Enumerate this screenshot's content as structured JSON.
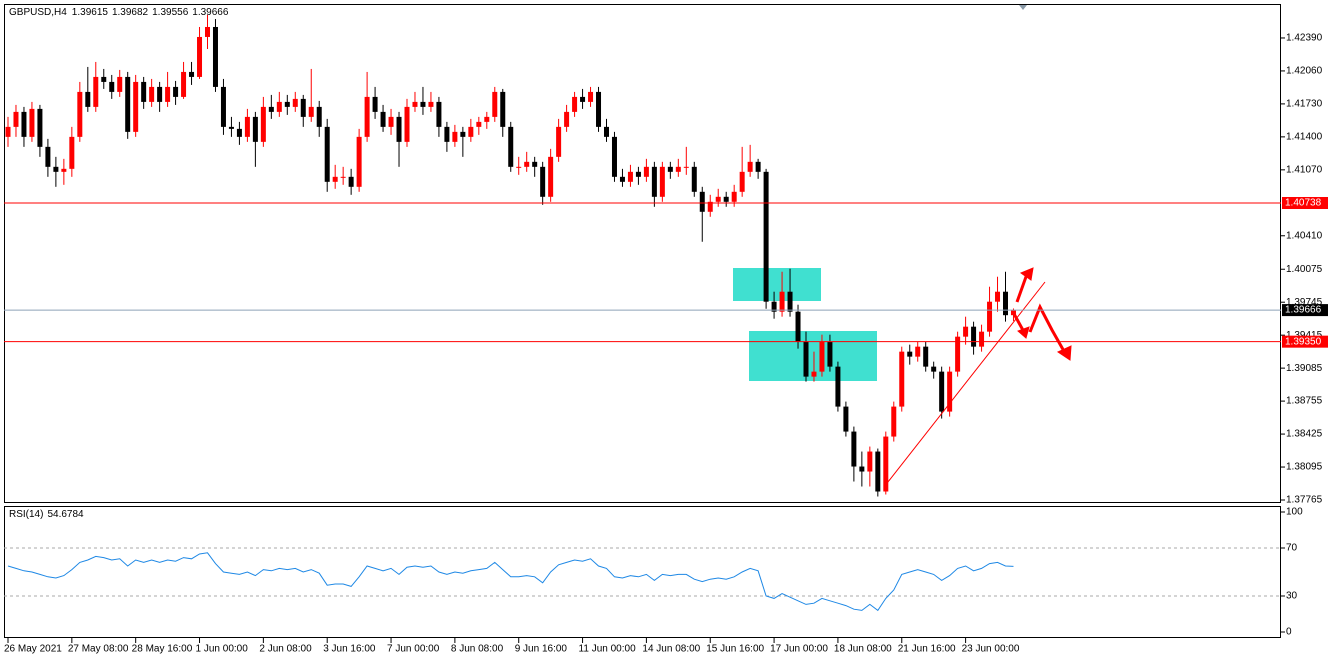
{
  "chart_data": [
    {
      "type": "candlestick",
      "title": "GBPUSD,H4",
      "categories": [
        "26 May 2021",
        null,
        null,
        null,
        null,
        null,
        null,
        null,
        "27 May 08:00",
        null,
        null,
        null,
        null,
        null,
        null,
        null,
        "28 May 16:00",
        null,
        null,
        null,
        null,
        null,
        null,
        null,
        "1 Jun 00:00",
        null,
        null,
        null,
        null,
        null,
        null,
        null,
        "2 Jun 08:00",
        null,
        null,
        null,
        null,
        null,
        null,
        null,
        "3 Jun 16:00",
        null,
        null,
        null,
        null,
        null,
        null,
        null,
        "7 Jun 00:00",
        null,
        null,
        null,
        null,
        null,
        null,
        null,
        "8 Jun 08:00",
        null,
        null,
        null,
        null,
        null,
        null,
        null,
        "9 Jun 16:00",
        null,
        null,
        null,
        null,
        null,
        null,
        null,
        "11 Jun 00:00",
        null,
        null,
        null,
        null,
        null,
        null,
        null,
        "14 Jun 08:00",
        null,
        null,
        null,
        null,
        null,
        null,
        null,
        "15 Jun 16:00",
        null,
        null,
        null,
        null,
        null,
        null,
        null,
        "17 Jun 00:00",
        null,
        null,
        null,
        null,
        null,
        null,
        null,
        "18 Jun 08:00",
        null,
        null,
        null,
        null,
        null,
        null,
        null,
        "21 Jun 16:00",
        null,
        null,
        null,
        null,
        null,
        null,
        null,
        "23 Jun 00:00",
        null,
        null,
        null,
        null,
        null,
        null
      ],
      "candles": [
        [
          1.414,
          1.416,
          1.413,
          1.415
        ],
        [
          1.415,
          1.4172,
          1.414,
          1.4165
        ],
        [
          1.4165,
          1.417,
          1.413,
          1.414
        ],
        [
          1.414,
          1.4175,
          1.4135,
          1.4168
        ],
        [
          1.4168,
          1.4172,
          1.412,
          1.413
        ],
        [
          1.413,
          1.4138,
          1.41,
          1.411
        ],
        [
          1.411,
          1.412,
          1.409,
          1.4105
        ],
        [
          1.4105,
          1.4118,
          1.4092,
          1.4108
        ],
        [
          1.4108,
          1.415,
          1.41,
          1.414
        ],
        [
          1.414,
          1.4195,
          1.4135,
          1.4185
        ],
        [
          1.4185,
          1.421,
          1.4165,
          1.417
        ],
        [
          1.417,
          1.4215,
          1.4165,
          1.42
        ],
        [
          1.42,
          1.4208,
          1.4188,
          1.4195
        ],
        [
          1.4195,
          1.4202,
          1.4178,
          1.4185
        ],
        [
          1.4185,
          1.4207,
          1.418,
          1.42
        ],
        [
          1.42,
          1.4205,
          1.4138,
          1.4145
        ],
        [
          1.4145,
          1.4202,
          1.414,
          1.4195
        ],
        [
          1.4195,
          1.42,
          1.4168,
          1.4175
        ],
        [
          1.4175,
          1.4198,
          1.417,
          1.419
        ],
        [
          1.419,
          1.4195,
          1.4165,
          1.4175
        ],
        [
          1.4175,
          1.4205,
          1.417,
          1.419
        ],
        [
          1.419,
          1.4196,
          1.4172,
          1.418
        ],
        [
          1.418,
          1.4215,
          1.4178,
          1.4205
        ],
        [
          1.4205,
          1.4215,
          1.4192,
          1.42
        ],
        [
          1.42,
          1.425,
          1.4198,
          1.424
        ],
        [
          1.424,
          1.4262,
          1.4228,
          1.425
        ],
        [
          1.425,
          1.4258,
          1.4185,
          1.419
        ],
        [
          1.419,
          1.4198,
          1.4142,
          1.415
        ],
        [
          1.415,
          1.416,
          1.414,
          1.4148
        ],
        [
          1.4148,
          1.4155,
          1.4132,
          1.414
        ],
        [
          1.414,
          1.4168,
          1.4135,
          1.416
        ],
        [
          1.416,
          1.4165,
          1.411,
          1.4135
        ],
        [
          1.4135,
          1.418,
          1.413,
          1.417
        ],
        [
          1.417,
          1.4182,
          1.4158,
          1.4165
        ],
        [
          1.4165,
          1.4185,
          1.416,
          1.4175
        ],
        [
          1.4175,
          1.4182,
          1.4162,
          1.417
        ],
        [
          1.417,
          1.4185,
          1.4165,
          1.4178
        ],
        [
          1.4178,
          1.4182,
          1.415,
          1.416
        ],
        [
          1.416,
          1.4208,
          1.4155,
          1.417
        ],
        [
          1.417,
          1.4176,
          1.414,
          1.415
        ],
        [
          1.415,
          1.4158,
          1.4085,
          1.4095
        ],
        [
          1.4095,
          1.4112,
          1.4088,
          1.41
        ],
        [
          1.41,
          1.411,
          1.4092,
          1.41
        ],
        [
          1.41,
          1.4108,
          1.4082,
          1.409
        ],
        [
          1.409,
          1.4148,
          1.4085,
          1.414
        ],
        [
          1.414,
          1.4205,
          1.4135,
          1.418
        ],
        [
          1.418,
          1.419,
          1.4158,
          1.4165
        ],
        [
          1.4165,
          1.4172,
          1.4145,
          1.415
        ],
        [
          1.415,
          1.4168,
          1.4142,
          1.416
        ],
        [
          1.416,
          1.4165,
          1.411,
          1.4135
        ],
        [
          1.4135,
          1.4178,
          1.413,
          1.417
        ],
        [
          1.417,
          1.4185,
          1.4165,
          1.4175
        ],
        [
          1.4175,
          1.419,
          1.4162,
          1.417
        ],
        [
          1.417,
          1.4185,
          1.4165,
          1.4175
        ],
        [
          1.4175,
          1.418,
          1.414,
          1.415
        ],
        [
          1.415,
          1.4155,
          1.4125,
          1.4135
        ],
        [
          1.4135,
          1.4152,
          1.413,
          1.4145
        ],
        [
          1.4145,
          1.415,
          1.412,
          1.414
        ],
        [
          1.414,
          1.4158,
          1.4135,
          1.415
        ],
        [
          1.415,
          1.416,
          1.4142,
          1.4155
        ],
        [
          1.4155,
          1.4165,
          1.4148,
          1.416
        ],
        [
          1.416,
          1.419,
          1.4155,
          1.4185
        ],
        [
          1.4185,
          1.4188,
          1.414,
          1.415
        ],
        [
          1.415,
          1.4155,
          1.4105,
          1.411
        ],
        [
          1.411,
          1.412,
          1.4102,
          1.411
        ],
        [
          1.411,
          1.4125,
          1.4105,
          1.4115
        ],
        [
          1.4115,
          1.412,
          1.41,
          1.411
        ],
        [
          1.411,
          1.4115,
          1.4072,
          1.408
        ],
        [
          1.408,
          1.4128,
          1.4075,
          1.412
        ],
        [
          1.412,
          1.4158,
          1.4115,
          1.415
        ],
        [
          1.415,
          1.4172,
          1.4145,
          1.4165
        ],
        [
          1.4165,
          1.4185,
          1.416,
          1.418
        ],
        [
          1.418,
          1.4188,
          1.4168,
          1.4175
        ],
        [
          1.4175,
          1.419,
          1.417,
          1.4185
        ],
        [
          1.4185,
          1.419,
          1.4145,
          1.415
        ],
        [
          1.415,
          1.4158,
          1.4135,
          1.414
        ],
        [
          1.414,
          1.4145,
          1.4095,
          1.41
        ],
        [
          1.41,
          1.4108,
          1.409,
          1.4095
        ],
        [
          1.4095,
          1.4112,
          1.409,
          1.4105
        ],
        [
          1.4105,
          1.411,
          1.4092,
          1.41
        ],
        [
          1.41,
          1.4118,
          1.4095,
          1.411
        ],
        [
          1.411,
          1.4115,
          1.407,
          1.408
        ],
        [
          1.408,
          1.4115,
          1.4075,
          1.411
        ],
        [
          1.411,
          1.4115,
          1.4098,
          1.4105
        ],
        [
          1.4105,
          1.4118,
          1.41,
          1.411
        ],
        [
          1.411,
          1.413,
          1.4102,
          1.411
        ],
        [
          1.411,
          1.4115,
          1.408,
          1.4085
        ],
        [
          1.4085,
          1.409,
          1.4035,
          1.4065
        ],
        [
          1.4065,
          1.4082,
          1.406,
          1.4075
        ],
        [
          1.4075,
          1.4088,
          1.407,
          1.408
        ],
        [
          1.408,
          1.4085,
          1.407,
          1.4075
        ],
        [
          1.4075,
          1.4092,
          1.407,
          1.4085
        ],
        [
          1.4085,
          1.413,
          1.408,
          1.4105
        ],
        [
          1.4105,
          1.4132,
          1.41,
          1.4115
        ],
        [
          1.4115,
          1.4118,
          1.4098,
          1.4105
        ],
        [
          1.4105,
          1.4108,
          1.3968,
          1.3975
        ],
        [
          1.3975,
          1.3985,
          1.3958,
          1.3965
        ],
        [
          1.3965,
          1.4005,
          1.396,
          1.3985
        ],
        [
          1.3985,
          1.4008,
          1.396,
          1.3965
        ],
        [
          1.3965,
          1.3972,
          1.3928,
          1.3935
        ],
        [
          1.3935,
          1.3945,
          1.3895,
          1.39
        ],
        [
          1.39,
          1.3925,
          1.3895,
          1.3905
        ],
        [
          1.3905,
          1.3942,
          1.39,
          1.3935
        ],
        [
          1.3935,
          1.3942,
          1.3905,
          1.391
        ],
        [
          1.391,
          1.3915,
          1.3865,
          1.387
        ],
        [
          1.387,
          1.3875,
          1.384,
          1.3845
        ],
        [
          1.3845,
          1.385,
          1.3795,
          1.381
        ],
        [
          1.381,
          1.3825,
          1.379,
          1.3805
        ],
        [
          1.3805,
          1.383,
          1.379,
          1.3825
        ],
        [
          1.3825,
          1.3828,
          1.378,
          1.3785
        ],
        [
          1.3785,
          1.3845,
          1.3782,
          1.384
        ],
        [
          1.384,
          1.3875,
          1.3835,
          1.387
        ],
        [
          1.387,
          1.393,
          1.3865,
          1.3925
        ],
        [
          1.3925,
          1.3932,
          1.3912,
          1.392
        ],
        [
          1.392,
          1.3935,
          1.3915,
          1.393
        ],
        [
          1.393,
          1.3935,
          1.3905,
          1.391
        ],
        [
          1.391,
          1.3915,
          1.3898,
          1.3905
        ],
        [
          1.3905,
          1.391,
          1.3858,
          1.3865
        ],
        [
          1.3865,
          1.391,
          1.386,
          1.3905
        ],
        [
          1.3905,
          1.3945,
          1.39,
          1.394
        ],
        [
          1.394,
          1.396,
          1.3932,
          1.395
        ],
        [
          1.395,
          1.3955,
          1.3922,
          1.393
        ],
        [
          1.393,
          1.3952,
          1.3925,
          1.3945
        ],
        [
          1.3945,
          1.399,
          1.394,
          1.3975
        ],
        [
          1.3975,
          1.4,
          1.3965,
          1.3985
        ],
        [
          1.3985,
          1.4005,
          1.3955,
          1.39615
        ],
        [
          1.39615,
          1.39682,
          1.39556,
          1.39666
        ]
      ],
      "up_color": "#ff0000",
      "down_color": "#000000",
      "ylim": [
        1.37735,
        1.4273
      ],
      "yticks": [
        {
          "value": 1.4239,
          "label": "1.42390"
        },
        {
          "value": 1.4206,
          "label": "1.42060"
        },
        {
          "value": 1.4173,
          "label": "1.41730"
        },
        {
          "value": 1.414,
          "label": "1.41400"
        },
        {
          "value": 1.4107,
          "label": "1.41070"
        },
        {
          "value": 1.4041,
          "label": "1.40410"
        },
        1.40075,
        1.39745,
        1.39415,
        1.39085,
        1.38755,
        1.38425,
        1.38095,
        1.37765
      ],
      "hlines": [
        {
          "value": 1.40738,
          "color": "#ff0000"
        },
        {
          "value": 1.3935,
          "label": "1.39350",
          "color": "#ff0000"
        }
      ],
      "price_line_color": "#8ea2b8"
    },
    {
      "type": "line",
      "title": "RSI(14)",
      "color": "#1e88e5",
      "values": [
        55,
        53,
        51,
        50,
        48,
        46,
        45,
        47,
        52,
        58,
        60,
        63,
        62,
        60,
        61,
        55,
        60,
        58,
        60,
        58,
        60,
        59,
        62,
        61,
        65,
        66,
        57,
        50,
        49,
        48,
        50,
        47,
        52,
        51,
        53,
        52,
        53,
        50,
        52,
        49,
        39,
        40,
        40,
        38,
        46,
        55,
        53,
        51,
        53,
        48,
        54,
        55,
        54,
        55,
        50,
        48,
        50,
        49,
        51,
        52,
        53,
        58,
        52,
        46,
        46,
        47,
        46,
        41,
        50,
        56,
        58,
        60,
        59,
        61,
        55,
        53,
        46,
        45,
        47,
        46,
        48,
        43,
        48,
        47,
        48,
        48,
        44,
        42,
        44,
        45,
        44,
        46,
        50,
        53,
        51,
        30,
        28,
        32,
        29,
        26,
        23,
        24,
        28,
        26,
        24,
        22,
        19,
        18,
        23,
        18,
        28,
        35,
        48,
        50,
        52,
        50,
        48,
        43,
        47,
        53,
        55,
        51,
        53,
        57,
        58,
        55,
        54.6784
      ],
      "ylim": [
        -5,
        105
      ],
      "yticks": [
        100,
        70,
        30,
        0
      ],
      "levels": [
        70,
        30
      ]
    }
  ]
}
